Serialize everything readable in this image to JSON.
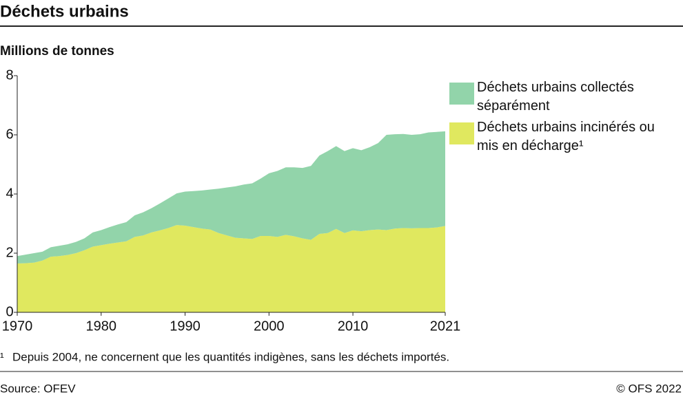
{
  "chart_data": {
    "type": "stacked_area",
    "title": "Déchets urbains",
    "y_label": "Millions de tonnes",
    "x": [
      1970,
      1971,
      1972,
      1973,
      1974,
      1975,
      1976,
      1977,
      1978,
      1979,
      1980,
      1981,
      1982,
      1983,
      1984,
      1985,
      1986,
      1987,
      1988,
      1989,
      1990,
      1991,
      1992,
      1993,
      1994,
      1995,
      1996,
      1997,
      1998,
      1999,
      2000,
      2001,
      2002,
      2003,
      2004,
      2005,
      2006,
      2007,
      2008,
      2009,
      2010,
      2011,
      2012,
      2013,
      2014,
      2015,
      2016,
      2017,
      2018,
      2019,
      2020,
      2021
    ],
    "series": [
      {
        "name": "Déchets urbains incinérés ou mis en décharge¹",
        "color": "#e0e85f",
        "values": [
          1.65,
          1.66,
          1.68,
          1.75,
          1.88,
          1.9,
          1.94,
          2.0,
          2.1,
          2.22,
          2.27,
          2.32,
          2.36,
          2.4,
          2.55,
          2.6,
          2.7,
          2.77,
          2.85,
          2.95,
          2.93,
          2.88,
          2.83,
          2.8,
          2.68,
          2.6,
          2.52,
          2.5,
          2.48,
          2.58,
          2.58,
          2.55,
          2.62,
          2.57,
          2.5,
          2.45,
          2.65,
          2.68,
          2.82,
          2.68,
          2.77,
          2.74,
          2.78,
          2.8,
          2.78,
          2.83,
          2.85,
          2.84,
          2.85,
          2.85,
          2.87,
          2.92
        ]
      },
      {
        "name": "Déchets urbains collectés séparément",
        "color": "#92d4aa",
        "values": [
          0.25,
          0.29,
          0.32,
          0.3,
          0.32,
          0.35,
          0.36,
          0.38,
          0.4,
          0.48,
          0.51,
          0.56,
          0.61,
          0.65,
          0.73,
          0.78,
          0.82,
          0.91,
          1.0,
          1.07,
          1.15,
          1.22,
          1.29,
          1.35,
          1.5,
          1.62,
          1.74,
          1.82,
          1.88,
          1.94,
          2.12,
          2.23,
          2.28,
          2.33,
          2.38,
          2.5,
          2.65,
          2.77,
          2.8,
          2.77,
          2.78,
          2.74,
          2.8,
          2.92,
          3.22,
          3.19,
          3.18,
          3.16,
          3.17,
          3.23,
          3.23,
          3.2
        ]
      }
    ],
    "xlim": [
      1970,
      2021
    ],
    "xticks": [
      1970,
      1980,
      1990,
      2000,
      2010,
      2021
    ],
    "ylim": [
      0,
      8
    ],
    "yticks": [
      0,
      2,
      4,
      6,
      8
    ],
    "legend": "right",
    "footnote": {
      "marker": "¹",
      "text": "Depuis 2004, ne concernent que les quantités indigènes, sans les déchets importés."
    },
    "source": "Source: OFEV",
    "credit": "© OFS 2022"
  }
}
